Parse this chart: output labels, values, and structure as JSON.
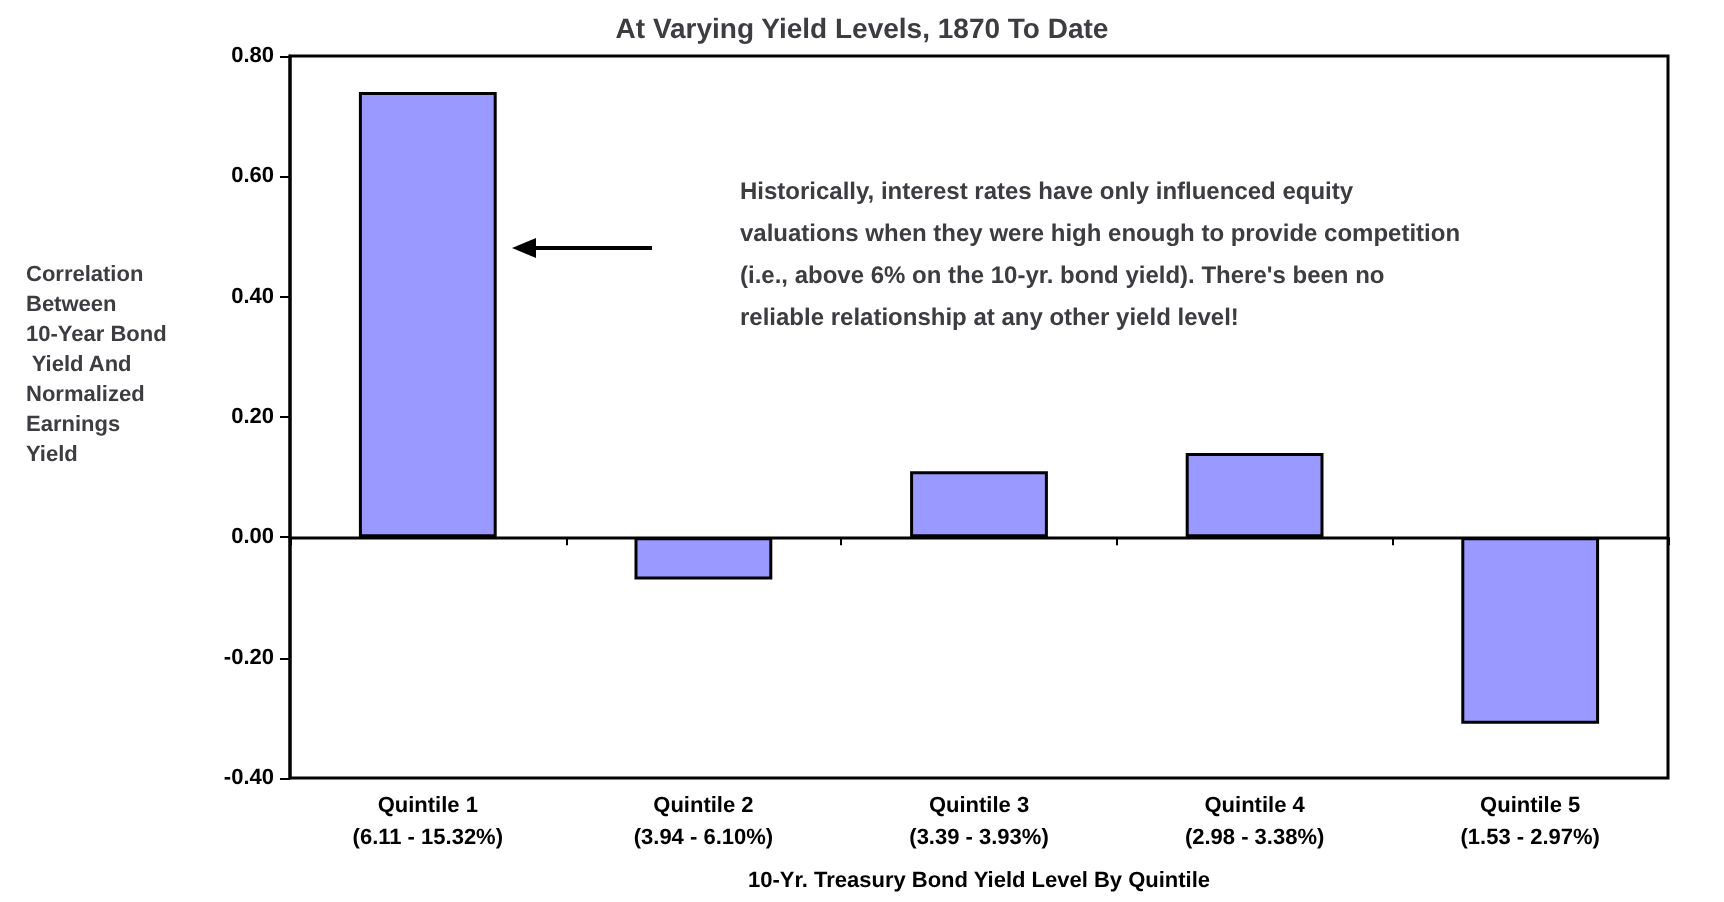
{
  "chart_data": {
    "type": "bar",
    "title": "At Varying Yield Levels, 1870 To Date",
    "categories": [
      "Quintile 1\n(6.11 - 15.32%)",
      "Quintile 2\n(3.94 - 6.10%)",
      "Quintile 3\n(3.39 - 3.93%)",
      "Quintile 4\n(2.98 - 3.38%)",
      "Quintile 5\n(1.53 - 2.97%)"
    ],
    "values": [
      0.74,
      -0.07,
      0.11,
      0.14,
      -0.31
    ],
    "color": "#9999ff",
    "ylim": [
      -0.4,
      0.8
    ],
    "yticks": [
      {
        "value": -0.4,
        "label": "-0.40"
      },
      {
        "value": -0.2,
        "label": "-0.20"
      },
      {
        "value": 0,
        "label": "0.00"
      },
      {
        "value": 0.2,
        "label": "0.20"
      },
      {
        "value": 0.4,
        "label": "0.40"
      },
      {
        "value": 0.6,
        "label": "0.60"
      },
      {
        "value": 0.8,
        "label": "0.80"
      }
    ],
    "xlabel": "10-Yr. Treasury Bond Yield Level By Quintile",
    "ylabel": "Correlation Between 10-Year Bond Yield And Normalized Earnings Yield",
    "annotations": [
      "Historically, interest rates have only influenced equity valuations when they were high enough to provide competition (i.e., above 6% on the 10-yr. bond yield). There's been no reliable relationship at any other yield level!"
    ]
  }
}
